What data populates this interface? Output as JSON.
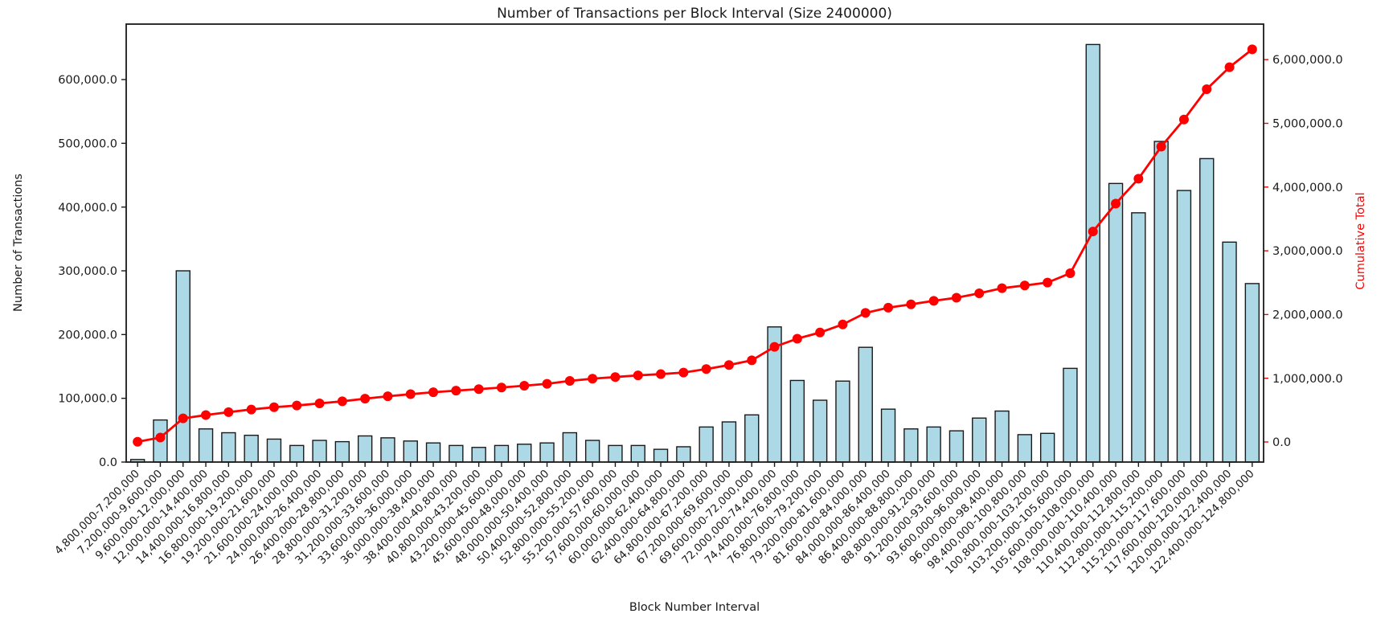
{
  "chart_data": {
    "type": "bar",
    "title": "Number of Transactions per Block Interval (Size 2400000)",
    "xlabel": "Block Number Interval",
    "ylabel_left": "Number of Transactions",
    "ylabel_right": "Cumulative Total",
    "legend_position": "none",
    "grid": false,
    "categories": [
      "4,800,000-7,200,000",
      "7,200,000-9,600,000",
      "9,600,000-12,000,000",
      "12,000,000-14,400,000",
      "14,400,000-16,800,000",
      "16,800,000-19,200,000",
      "19,200,000-21,600,000",
      "21,600,000-24,000,000",
      "24,000,000-26,400,000",
      "26,400,000-28,800,000",
      "28,800,000-31,200,000",
      "31,200,000-33,600,000",
      "33,600,000-36,000,000",
      "36,000,000-38,400,000",
      "38,400,000-40,800,000",
      "40,800,000-43,200,000",
      "43,200,000-45,600,000",
      "45,600,000-48,000,000",
      "48,000,000-50,400,000",
      "50,400,000-52,800,000",
      "52,800,000-55,200,000",
      "55,200,000-57,600,000",
      "57,600,000-60,000,000",
      "60,000,000-62,400,000",
      "62,400,000-64,800,000",
      "64,800,000-67,200,000",
      "67,200,000-69,600,000",
      "69,600,000-72,000,000",
      "72,000,000-74,400,000",
      "74,400,000-76,800,000",
      "76,800,000-79,200,000",
      "79,200,000-81,600,000",
      "81,600,000-84,000,000",
      "84,000,000-86,400,000",
      "86,400,000-88,800,000",
      "88,800,000-91,200,000",
      "91,200,000-93,600,000",
      "93,600,000-96,000,000",
      "96,000,000-98,400,000",
      "98,400,000-100,800,000",
      "100,800,000-103,200,000",
      "103,200,000-105,600,000",
      "105,600,000-108,000,000",
      "108,000,000-110,400,000",
      "110,400,000-112,800,000",
      "112,800,000-115,200,000",
      "115,200,000-117,600,000",
      "117,600,000-120,000,000",
      "120,000,000-122,400,000",
      "122,400,000-124,800,000"
    ],
    "series": [
      {
        "name": "Number of Transactions",
        "type": "bar",
        "axis": "left",
        "values": [
          4000,
          66000,
          300000,
          52000,
          46000,
          42000,
          36000,
          26000,
          34000,
          32000,
          41000,
          38000,
          33000,
          30000,
          26000,
          23000,
          26000,
          28000,
          30000,
          46000,
          34000,
          26000,
          26000,
          20000,
          24000,
          55000,
          63000,
          74000,
          212000,
          128000,
          97000,
          127000,
          180000,
          83000,
          52000,
          55000,
          49000,
          69000,
          80000,
          43000,
          45000,
          147000,
          655000,
          437000,
          391000,
          503000,
          426000,
          476000,
          345000,
          280000
        ]
      },
      {
        "name": "Cumulative Total",
        "type": "line",
        "axis": "right",
        "values": [
          4000,
          70000,
          370000,
          422000,
          468000,
          510000,
          546000,
          572000,
          606000,
          638000,
          679000,
          717000,
          750000,
          780000,
          806000,
          829000,
          855000,
          883000,
          913000,
          959000,
          993000,
          1019000,
          1045000,
          1065000,
          1089000,
          1144000,
          1207000,
          1281000,
          1493000,
          1621000,
          1718000,
          1845000,
          2025000,
          2108000,
          2160000,
          2215000,
          2264000,
          2333000,
          2413000,
          2456000,
          2501000,
          2648000,
          3303000,
          3740000,
          4131000,
          4634000,
          5060000,
          5536000,
          5881000,
          6161000
        ]
      }
    ],
    "left_axis": {
      "tick_values": [
        0,
        100000,
        200000,
        300000,
        400000,
        500000,
        600000
      ],
      "tick_labels": [
        "0.0",
        "100,000.0",
        "200,000.0",
        "300,000.0",
        "400,000.0",
        "500,000.0",
        "600,000.0"
      ],
      "range": [
        0,
        687000
      ]
    },
    "right_axis": {
      "tick_values": [
        0,
        1000000,
        2000000,
        3000000,
        4000000,
        5000000,
        6000000
      ],
      "tick_labels": [
        "0.0",
        "1,000,000.0",
        "2,000,000.0",
        "3,000,000.0",
        "4,000,000.0",
        "5,000,000.0",
        "6,000,000.0"
      ],
      "range": [
        -315000,
        6557000
      ]
    },
    "colors": {
      "bar_fill": "#ADD8E6",
      "bar_edge": "#1a1a1a",
      "line": "#ff0000",
      "right_text": "#ff0000",
      "text": "#1a1a1a",
      "background": "#ffffff"
    }
  }
}
